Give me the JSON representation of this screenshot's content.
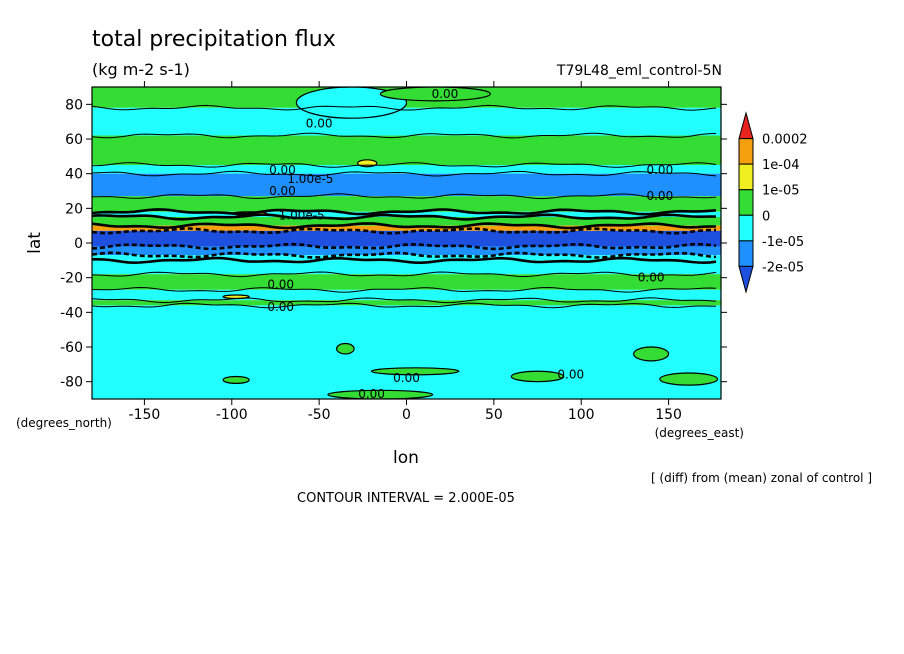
{
  "title": "total precipitation flux",
  "subtitle": "(kg m-2 s-1)",
  "dataset": "T79L48_eml_control-5N",
  "contour_interval": "CONTOUR INTERVAL = 2.000E-05",
  "note": "[ (diff) from (mean) zonal of control ]",
  "chart_data": {
    "type": "heatmap",
    "xlabel": "lon",
    "ylabel": "lat",
    "x_units": "(degrees_east)",
    "y_units": "(degrees_north)",
    "xlim": [
      -180,
      180
    ],
    "ylim": [
      -90,
      90
    ],
    "x_ticks": [
      -150,
      -100,
      -50,
      0,
      50,
      100,
      150
    ],
    "y_ticks": [
      80,
      60,
      40,
      20,
      0,
      -20,
      -40,
      -60,
      -80
    ],
    "colorbar": {
      "labels": [
        "0.0002",
        "1e-04",
        "1e-05",
        "0",
        "-1e-05",
        "-2e-05"
      ],
      "colors": [
        "#e8231e",
        "#f5a00e",
        "#f0f020",
        "#33dd33",
        "#22ffff",
        "#1e90ff",
        "#1e50e0"
      ]
    },
    "zonal_bands": [
      {
        "lat": [
          78,
          90
        ],
        "level": 3
      },
      {
        "lat": [
          62,
          78
        ],
        "level": 2
      },
      {
        "lat": [
          45,
          62
        ],
        "level": 3
      },
      {
        "lat": [
          40,
          45
        ],
        "level": 2
      },
      {
        "lat": [
          27,
          40
        ],
        "level": 1
      },
      {
        "lat": [
          18,
          27
        ],
        "level": 3
      },
      {
        "lat": [
          15,
          18
        ],
        "level": 2
      },
      {
        "lat": [
          10,
          15
        ],
        "level": 3
      },
      {
        "lat": [
          7,
          10
        ],
        "level": 5
      },
      {
        "lat": [
          -2,
          7
        ],
        "level": 0
      },
      {
        "lat": [
          -7,
          -2
        ],
        "level": 1
      },
      {
        "lat": [
          -10,
          -7
        ],
        "level": 2
      },
      {
        "lat": [
          -18,
          -10
        ],
        "level": 2
      },
      {
        "lat": [
          -27,
          -18
        ],
        "level": 3
      },
      {
        "lat": [
          -33,
          -27
        ],
        "level": 2
      },
      {
        "lat": [
          -36,
          -33
        ],
        "level": 3
      },
      {
        "lat": [
          -90,
          -36
        ],
        "level": 2
      }
    ],
    "blobs": [
      {
        "lon": [
          -63,
          0
        ],
        "lat": [
          72,
          90
        ],
        "level": 2
      },
      {
        "lon": [
          -15,
          48
        ],
        "lat": [
          82,
          90
        ],
        "level": 3
      },
      {
        "lon": [
          -28,
          -17
        ],
        "lat": [
          44,
          48
        ],
        "level": 4
      },
      {
        "lon": [
          -100,
          -80
        ],
        "lat": [
          16,
          18
        ],
        "level": 4
      },
      {
        "lon": [
          -105,
          -90
        ],
        "lat": [
          -32,
          -30
        ],
        "level": 4
      },
      {
        "lon": [
          -40,
          -30
        ],
        "lat": [
          -64,
          -58
        ],
        "level": 3
      },
      {
        "lon": [
          -105,
          -90
        ],
        "lat": [
          -81,
          -77
        ],
        "level": 3
      },
      {
        "lon": [
          -20,
          30
        ],
        "lat": [
          -76,
          -72
        ],
        "level": 3
      },
      {
        "lon": [
          60,
          90
        ],
        "lat": [
          -80,
          -74
        ],
        "level": 3
      },
      {
        "lon": [
          130,
          150
        ],
        "lat": [
          -68,
          -60
        ],
        "level": 3
      },
      {
        "lon": [
          145,
          178
        ],
        "lat": [
          -82,
          -75
        ],
        "level": 3
      },
      {
        "lon": [
          -45,
          15
        ],
        "lat": [
          -90,
          -85
        ],
        "level": 3
      }
    ],
    "contour_labels": [
      {
        "text": "0.00",
        "lon": 22,
        "lat": 86
      },
      {
        "text": "0.00",
        "lon": -50,
        "lat": 69
      },
      {
        "text": "0.00",
        "lon": -71,
        "lat": 42
      },
      {
        "text": "0.00",
        "lon": -71,
        "lat": 30
      },
      {
        "text": "0.00",
        "lon": 145,
        "lat": 42
      },
      {
        "text": "0.00",
        "lon": 145,
        "lat": 27
      },
      {
        "text": "1.00e-5",
        "lon": -55,
        "lat": 37
      },
      {
        "text": "1.00e-5",
        "lon": -60,
        "lat": 16
      },
      {
        "text": "0.00",
        "lon": 140,
        "lat": -20
      },
      {
        "text": "0.00",
        "lon": -72,
        "lat": -24
      },
      {
        "text": "0.00",
        "lon": -72,
        "lat": -37
      },
      {
        "text": "0.00",
        "lon": 0,
        "lat": -78
      },
      {
        "text": "0.00",
        "lon": 94,
        "lat": -76
      },
      {
        "text": "0.00",
        "lon": -20,
        "lat": -87
      }
    ]
  }
}
